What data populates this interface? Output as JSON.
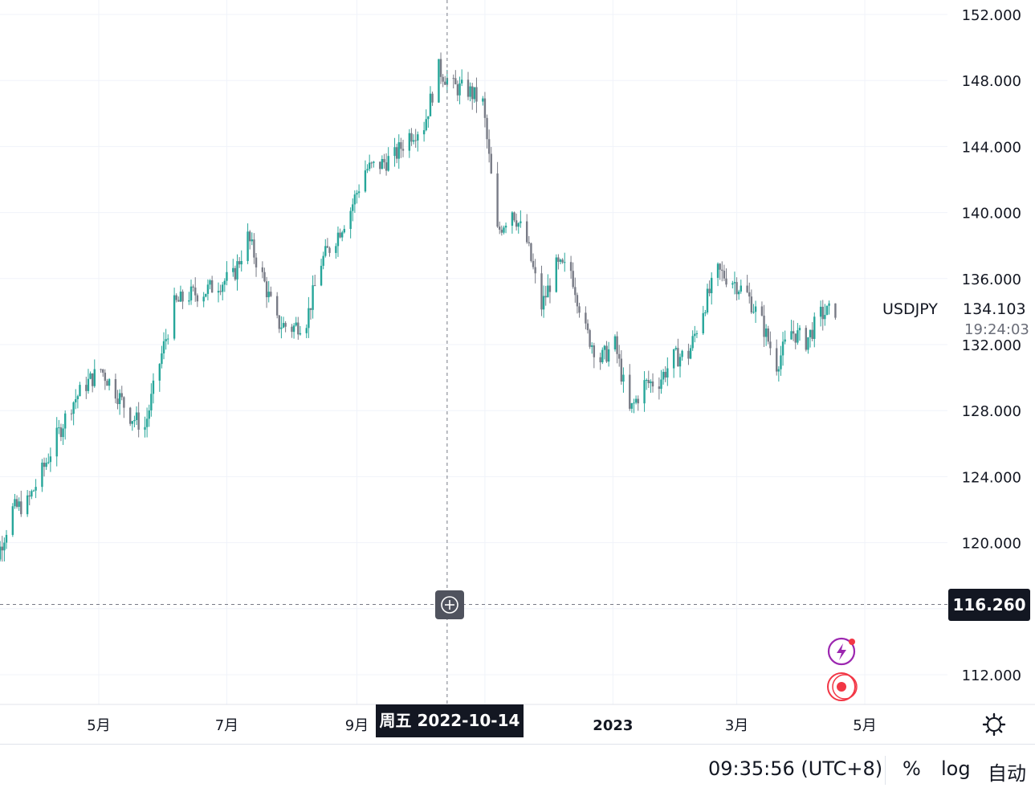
{
  "chart_data": {
    "type": "candlestick",
    "symbol": "USDJPY",
    "last_price": "134.103",
    "countdown": "19:24:03",
    "ylim": [
      110,
      153
    ],
    "y_ticks": [
      "112.000",
      "116.000",
      "120.000",
      "124.000",
      "128.000",
      "132.000",
      "136.000",
      "140.000",
      "144.000",
      "148.000",
      "152.000"
    ],
    "x_ticks": [
      "5月",
      "7月",
      "9月",
      "2023",
      "3月",
      "5月"
    ],
    "crosshair_price": "116.260",
    "crosshair_date": "周五 2022-10-14",
    "grid": true,
    "up_color": "#26a69a",
    "down_color": "#787b86",
    "series": [
      {
        "x": "2022-03-07",
        "y": 119.0
      },
      {
        "x": "2022-03-14",
        "y": 119.3
      },
      {
        "x": "2022-03-21",
        "y": 122.0
      },
      {
        "x": "2022-03-28",
        "y": 122.4
      },
      {
        "x": "2022-04-04",
        "y": 124.3
      },
      {
        "x": "2022-04-11",
        "y": 126.4
      },
      {
        "x": "2022-04-18",
        "y": 128.4
      },
      {
        "x": "2022-04-25",
        "y": 129.6
      },
      {
        "x": "2022-05-02",
        "y": 130.5
      },
      {
        "x": "2022-05-09",
        "y": 129.2
      },
      {
        "x": "2022-05-16",
        "y": 127.7
      },
      {
        "x": "2022-05-23",
        "y": 127.0
      },
      {
        "x": "2022-05-30",
        "y": 130.9
      },
      {
        "x": "2022-06-06",
        "y": 134.4
      },
      {
        "x": "2022-06-13",
        "y": 135.0
      },
      {
        "x": "2022-06-20",
        "y": 135.2
      },
      {
        "x": "2022-06-27",
        "y": 135.7
      },
      {
        "x": "2022-07-04",
        "y": 136.1
      },
      {
        "x": "2022-07-11",
        "y": 138.5
      },
      {
        "x": "2022-07-18",
        "y": 136.1
      },
      {
        "x": "2022-07-25",
        "y": 133.3
      },
      {
        "x": "2022-08-01",
        "y": 133.0
      },
      {
        "x": "2022-08-08",
        "y": 133.5
      },
      {
        "x": "2022-08-15",
        "y": 137.0
      },
      {
        "x": "2022-08-22",
        "y": 138.5
      },
      {
        "x": "2022-08-29",
        "y": 140.2
      },
      {
        "x": "2022-09-05",
        "y": 142.6
      },
      {
        "x": "2022-09-12",
        "y": 142.9
      },
      {
        "x": "2022-09-19",
        "y": 143.4
      },
      {
        "x": "2022-09-26",
        "y": 144.7
      },
      {
        "x": "2022-10-03",
        "y": 145.3
      },
      {
        "x": "2022-10-10",
        "y": 148.7
      },
      {
        "x": "2022-10-17",
        "y": 147.6
      },
      {
        "x": "2022-10-24",
        "y": 147.4
      },
      {
        "x": "2022-10-31",
        "y": 146.6
      },
      {
        "x": "2022-11-07",
        "y": 138.8
      },
      {
        "x": "2022-11-14",
        "y": 140.2
      },
      {
        "x": "2022-11-21",
        "y": 138.2
      },
      {
        "x": "2022-11-28",
        "y": 134.3
      },
      {
        "x": "2022-12-05",
        "y": 136.7
      },
      {
        "x": "2022-12-12",
        "y": 136.5
      },
      {
        "x": "2022-12-19",
        "y": 132.8
      },
      {
        "x": "2022-12-26",
        "y": 131.1
      },
      {
        "x": "2023-01-02",
        "y": 132.0
      },
      {
        "x": "2023-01-09",
        "y": 127.9
      },
      {
        "x": "2023-01-16",
        "y": 129.6
      },
      {
        "x": "2023-01-23",
        "y": 129.8
      },
      {
        "x": "2023-01-30",
        "y": 131.2
      },
      {
        "x": "2023-02-06",
        "y": 131.4
      },
      {
        "x": "2023-02-13",
        "y": 134.2
      },
      {
        "x": "2023-02-20",
        "y": 136.4
      },
      {
        "x": "2023-02-27",
        "y": 135.9
      },
      {
        "x": "2023-03-06",
        "y": 135.0
      },
      {
        "x": "2023-03-13",
        "y": 133.3
      },
      {
        "x": "2023-03-20",
        "y": 130.8
      },
      {
        "x": "2023-03-27",
        "y": 132.8
      },
      {
        "x": "2023-04-03",
        "y": 132.2
      },
      {
        "x": "2023-04-10",
        "y": 133.8
      },
      {
        "x": "2023-04-17",
        "y": 134.1
      }
    ]
  },
  "status_bar": {
    "clock": "09:35:56 (UTC+8)",
    "percent": "%",
    "log": "log",
    "auto": "自动"
  },
  "icons": {
    "settings": "gear-icon",
    "crosshair_add": "plus-circle-icon",
    "flash": "lightning-icon",
    "record": "record-icon"
  }
}
